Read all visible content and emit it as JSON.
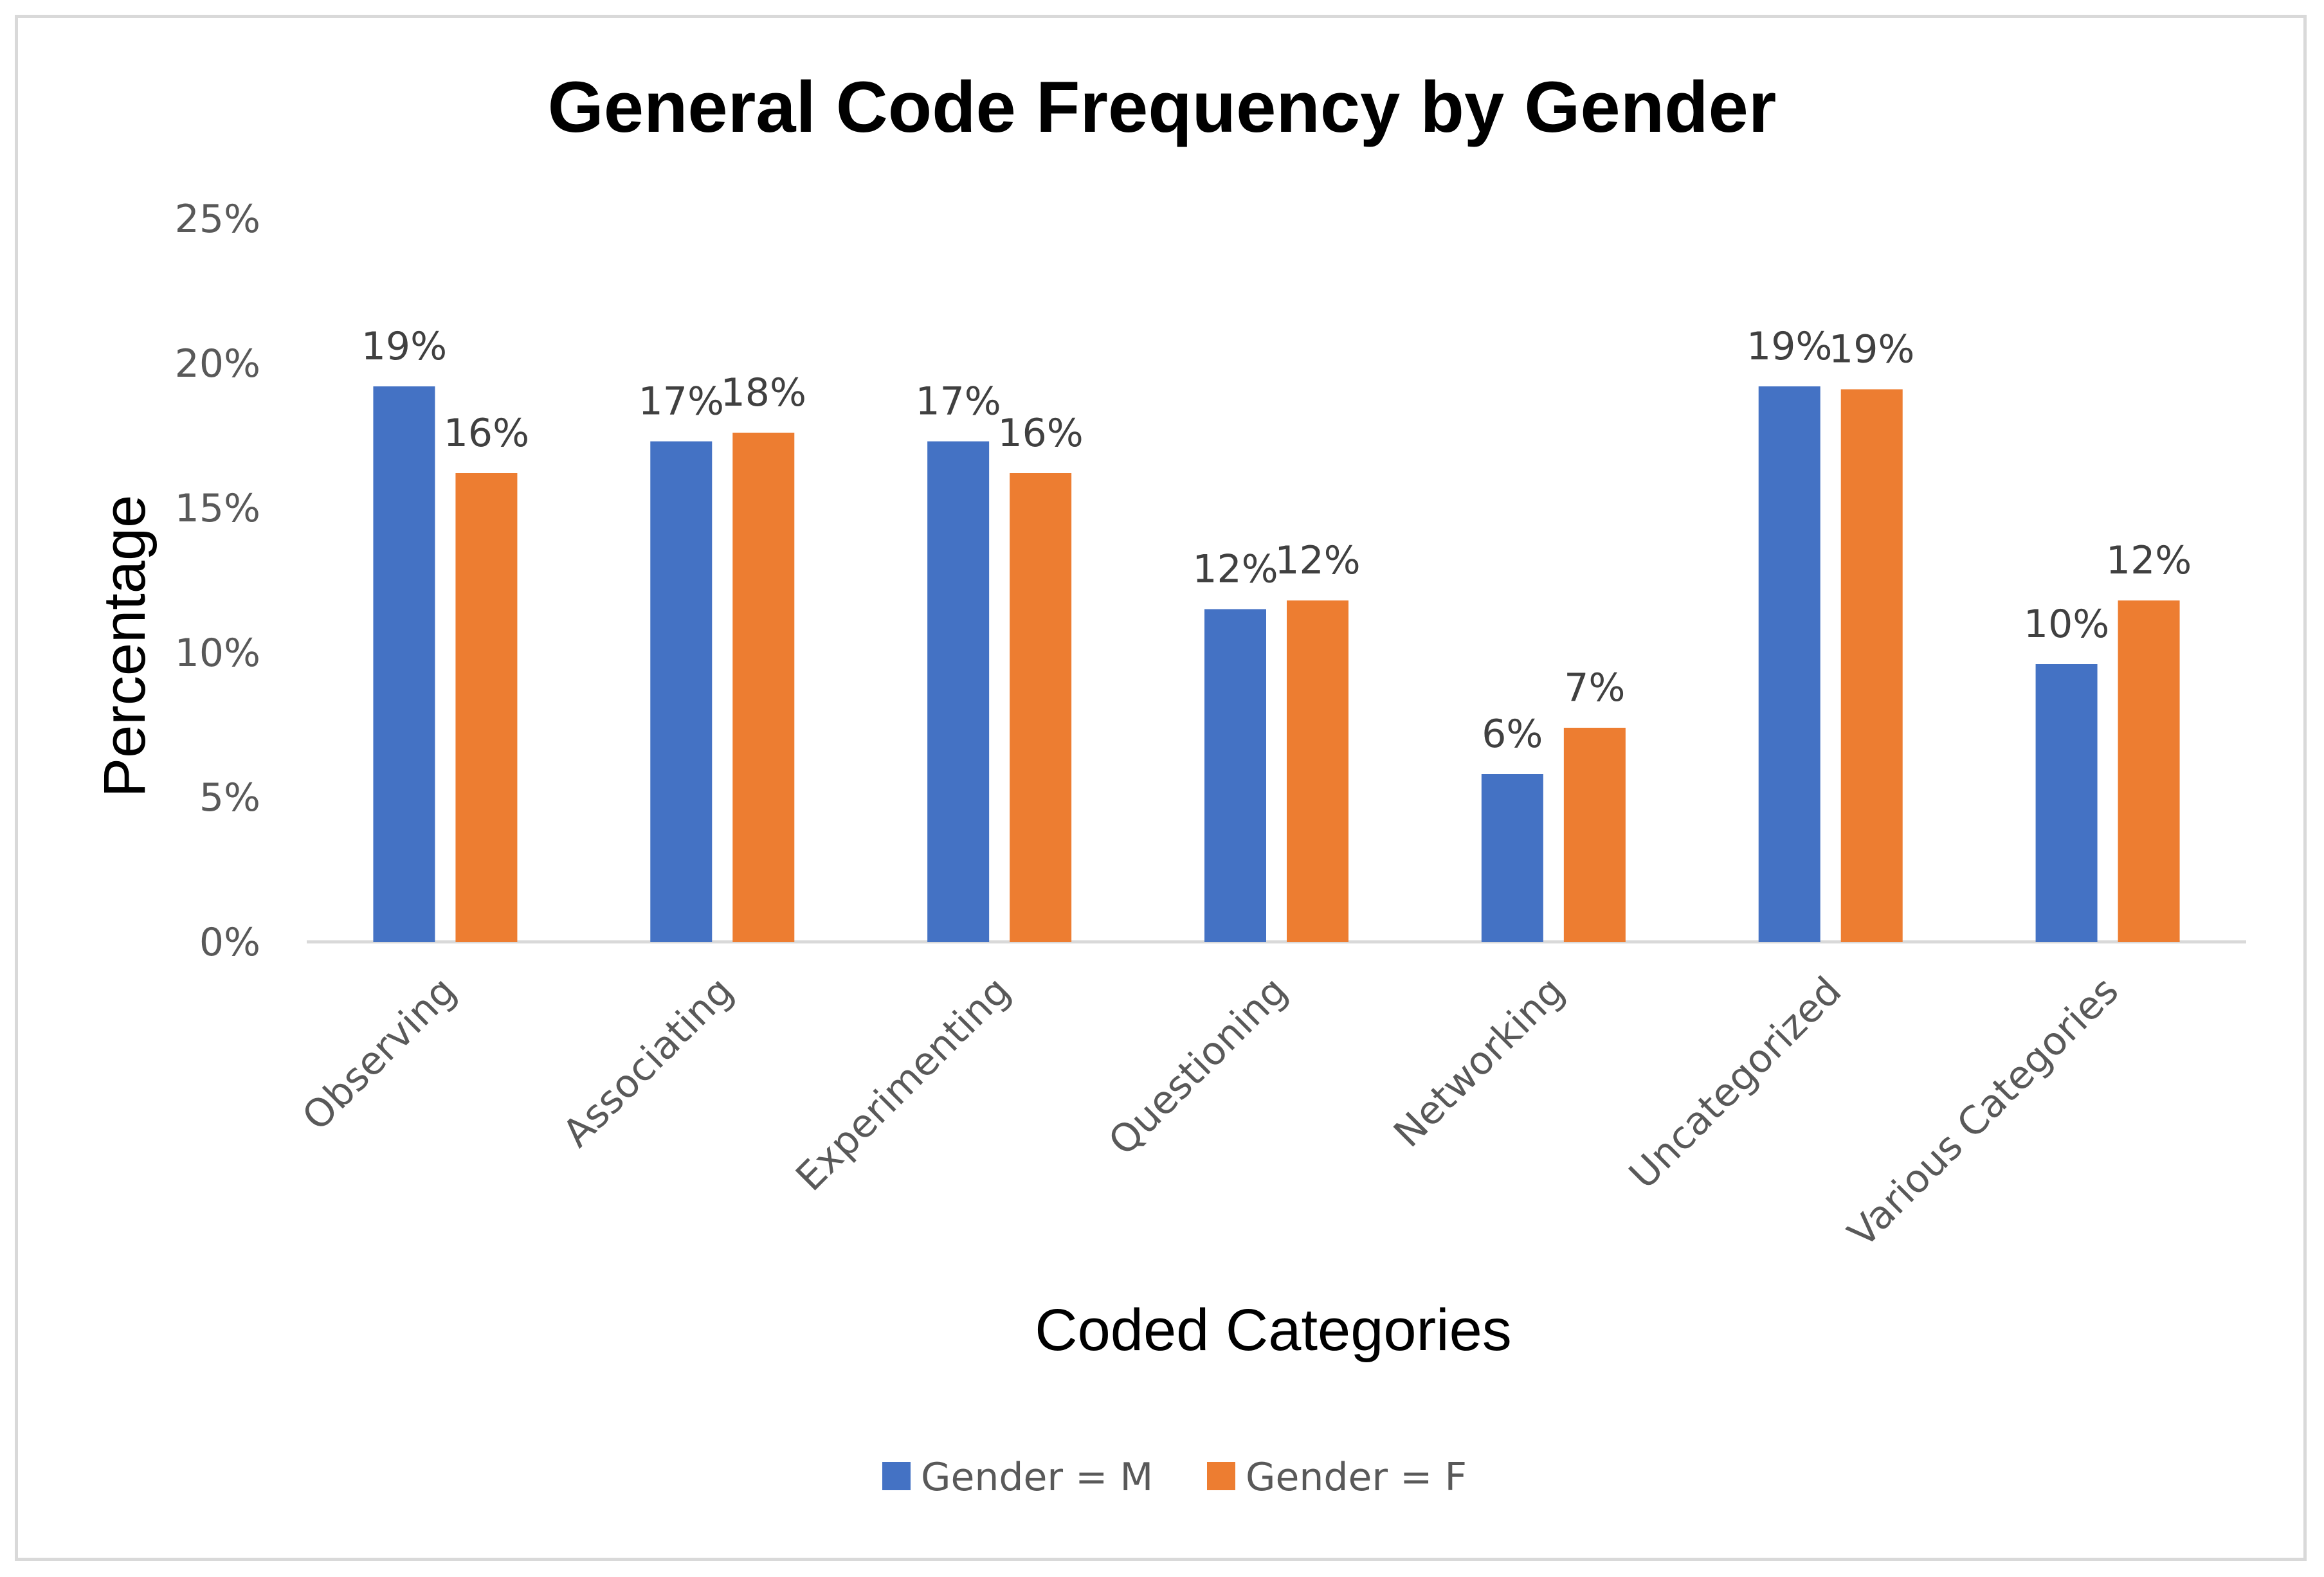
{
  "chart_data": {
    "type": "bar",
    "title": "General Code Frequency by Gender",
    "xlabel": "Coded Categories",
    "ylabel": "Percentage",
    "ylim": [
      0,
      25
    ],
    "yticks": [
      "0%",
      "5%",
      "10%",
      "15%",
      "20%",
      "25%"
    ],
    "ytick_values": [
      0,
      5,
      10,
      15,
      20,
      25
    ],
    "grid": false,
    "legend_position": "bottom",
    "categories": [
      "Observing",
      "Associating",
      "Experimenting",
      "Questioning",
      "Networking",
      "Uncategorized",
      "Various Categories"
    ],
    "series": [
      {
        "name": "Gender = M",
        "color": "#4472c4",
        "values": [
          19.2,
          17.3,
          17.3,
          11.5,
          5.8,
          19.2,
          9.6
        ],
        "labels": [
          "19%",
          "17%",
          "17%",
          "12%",
          "6%",
          "19%",
          "10%"
        ]
      },
      {
        "name": "Gender = F",
        "color": "#ed7d31",
        "values": [
          16.2,
          17.6,
          16.2,
          11.8,
          7.4,
          19.1,
          11.8
        ],
        "labels": [
          "16%",
          "18%",
          "16%",
          "12%",
          "7%",
          "19%",
          "12%"
        ]
      }
    ]
  }
}
